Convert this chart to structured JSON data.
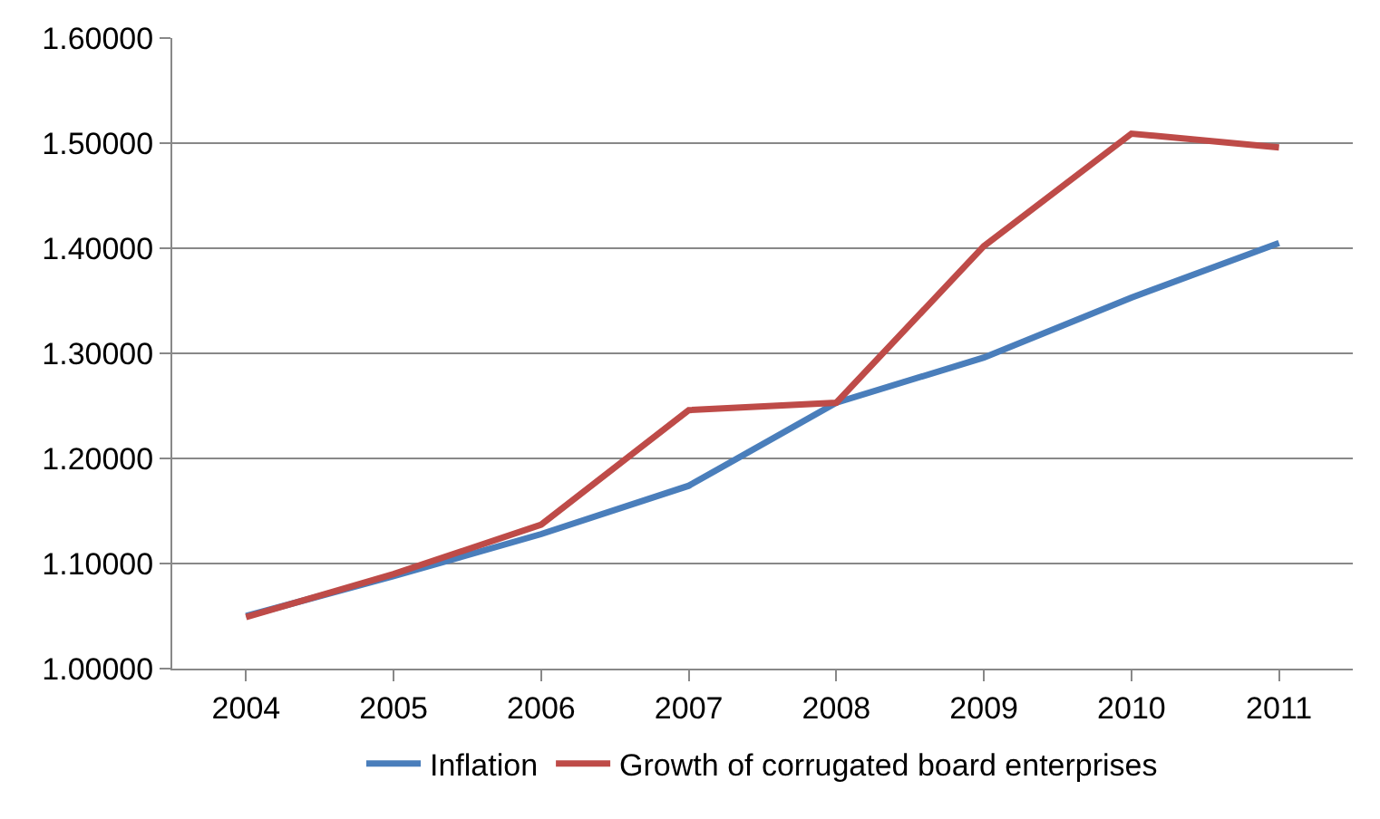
{
  "chart_data": {
    "type": "line",
    "categories": [
      "2004",
      "2005",
      "2006",
      "2007",
      "2008",
      "2009",
      "2010",
      "2011"
    ],
    "series": [
      {
        "name": "Inflation",
        "color": "#4a7ebb",
        "values": [
          1.05,
          1.088,
          1.128,
          1.174,
          1.253,
          1.296,
          1.353,
          1.405
        ]
      },
      {
        "name": "Growth of corrugated board enterprises",
        "color": "#be4b48",
        "values": [
          1.049,
          1.09,
          1.137,
          1.246,
          1.253,
          1.402,
          1.509,
          1.496
        ]
      }
    ],
    "ylim": [
      1,
      1.6
    ],
    "yticks": [
      {
        "value": 1,
        "label": "1.00000"
      },
      {
        "value": 1.1,
        "label": "1.10000"
      },
      {
        "value": 1.2,
        "label": "1.20000"
      },
      {
        "value": 1.3,
        "label": "1.30000"
      },
      {
        "value": 1.4,
        "label": "1.40000"
      },
      {
        "value": 1.5,
        "label": "1.50000"
      },
      {
        "value": 1.6,
        "label": "1.60000"
      }
    ],
    "grid": "y",
    "legend": "bottom",
    "marker": "none",
    "line_style": "solid"
  }
}
